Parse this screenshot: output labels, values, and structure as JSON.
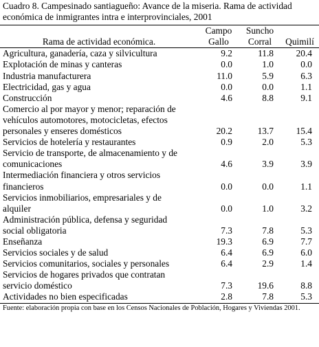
{
  "title": "Cuadro 8. Campesinado santiagueño: Avance de la miseria. Rama de actividad económica de inmigrantes intra e interprovinciales, 2001",
  "table": {
    "header": [
      "Rama de actividad económica.",
      "Campo Gallo",
      "Suncho Corral",
      "Quimilí"
    ],
    "rows": [
      [
        "Agricultura, ganadería, caza y silvicultura",
        "9.2",
        "11.8",
        "20.4"
      ],
      [
        "Explotación de minas y canteras",
        "0.0",
        "1.0",
        "0.0"
      ],
      [
        "Industria manufacturera",
        "11.0",
        "5.9",
        "6.3"
      ],
      [
        "Electricidad, gas y agua",
        "0.0",
        "0.0",
        "1.1"
      ],
      [
        "Construcción",
        "4.6",
        "8.8",
        "9.1"
      ],
      [
        "Comercio al por mayor y menor; reparación de vehículos automotores, motocicletas, efectos personales y enseres domésticos",
        "20.2",
        "13.7",
        "15.4"
      ],
      [
        "Servicios de hotelería y restaurantes",
        "0.9",
        "2.0",
        "5.3"
      ],
      [
        "Servicio de transporte, de almacenamiento y de comunicaciones",
        "4.6",
        "3.9",
        "3.9"
      ],
      [
        "Intermediación  financiera y otros servicios financieros",
        "0.0",
        "0.0",
        "1.1"
      ],
      [
        "Servicios inmobiliarios, empresariales y de alquiler",
        "0.0",
        "1.0",
        "3.2"
      ],
      [
        "Administración pública, defensa y seguridad social obligatoria",
        "7.3",
        "7.8",
        "5.3"
      ],
      [
        "Enseñanza",
        "19.3",
        "6.9",
        "7.7"
      ],
      [
        "Servicios sociales y de salud",
        "6.4",
        "6.9",
        "6.0"
      ],
      [
        "Servicios comunitarios, sociales y personales",
        "6.4",
        "2.9",
        "1.4"
      ],
      [
        "Servicios de hogares privados que contratan servicio doméstico",
        "7.3",
        "19.6",
        "8.8"
      ],
      [
        "Actividades no bien especificadas",
        "2.8",
        "7.8",
        "5.3"
      ]
    ]
  },
  "footnote": "Fuente: elaboración propia con base en los Censos Nacionales de Población, Hogares y Viviendas 2001."
}
